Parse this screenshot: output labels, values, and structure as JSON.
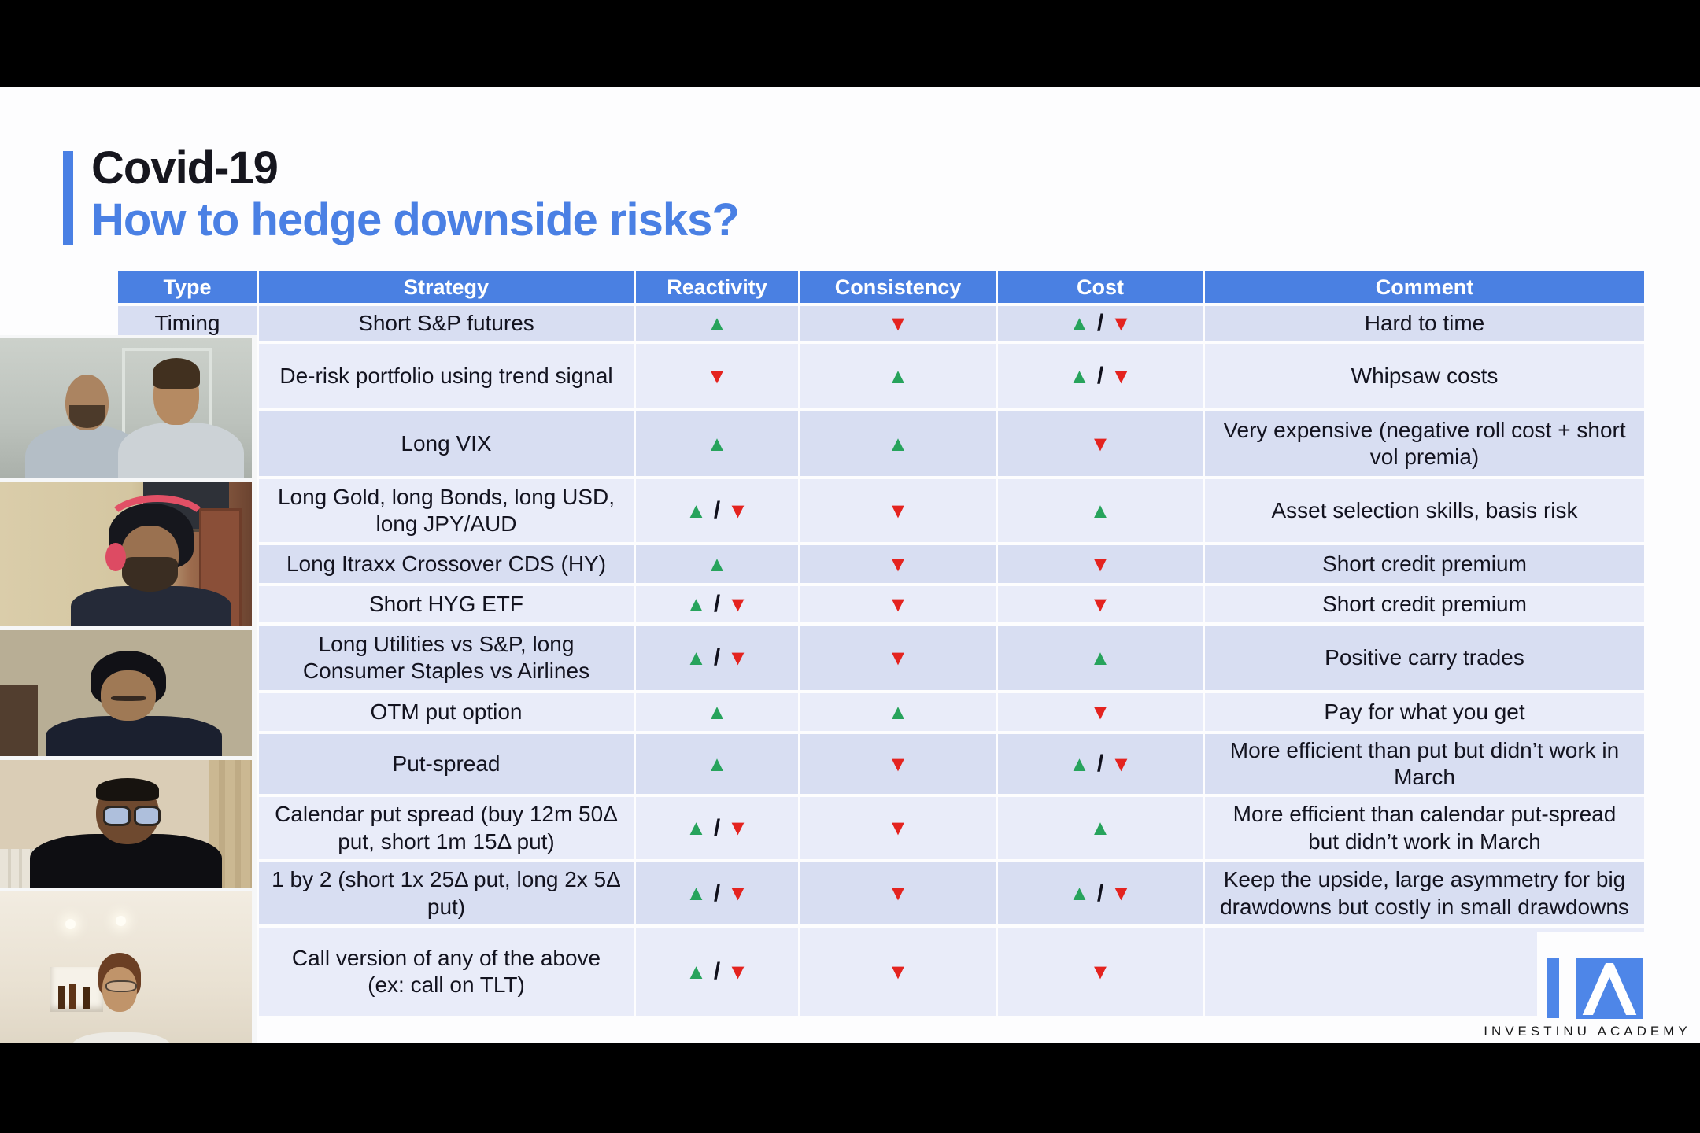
{
  "slide": {
    "title_line1": "Covid-19",
    "title_line2": "How to hedge downside risks?"
  },
  "table": {
    "headers": [
      "Type",
      "Strategy",
      "Reactivity",
      "Consistency",
      "Cost",
      "Comment"
    ],
    "rows": [
      {
        "type": "Timing",
        "strategy": "Short S&P futures",
        "reactivity": "up",
        "consistency": "down",
        "cost": "up/down",
        "comment": "Hard to time"
      },
      {
        "type": "",
        "strategy": "De-risk portfolio using trend signal",
        "reactivity": "down",
        "consistency": "up",
        "cost": "up/down",
        "comment": "Whipsaw costs"
      },
      {
        "type": "",
        "strategy": "Long VIX",
        "reactivity": "up",
        "consistency": "up",
        "cost": "down",
        "comment": "Very expensive (negative roll cost + short vol premia)"
      },
      {
        "type": "",
        "strategy": "Long Gold, long Bonds, long USD, long JPY/AUD",
        "reactivity": "up/down",
        "consistency": "down",
        "cost": "up",
        "comment": "Asset selection skills, basis risk"
      },
      {
        "type": "",
        "strategy": "Long Itraxx Crossover CDS (HY)",
        "reactivity": "up",
        "consistency": "down",
        "cost": "down",
        "comment": "Short credit premium"
      },
      {
        "type": "",
        "strategy": "Short HYG ETF",
        "reactivity": "up/down",
        "consistency": "down",
        "cost": "down",
        "comment": "Short credit premium"
      },
      {
        "type": "",
        "strategy": "Long Utilities vs S&P, long Consumer Staples vs Airlines",
        "reactivity": "up/down",
        "consistency": "down",
        "cost": "up",
        "comment": "Positive carry trades"
      },
      {
        "type": "",
        "strategy": "OTM put option",
        "reactivity": "up",
        "consistency": "up",
        "cost": "down",
        "comment": "Pay for what you get"
      },
      {
        "type": "",
        "strategy": "Put-spread",
        "reactivity": "up",
        "consistency": "down",
        "cost": "up/down",
        "comment": "More efficient than put but didn’t work in March"
      },
      {
        "type": "",
        "strategy": "Calendar put spread (buy 12m 50Δ put, short 1m 15Δ put)",
        "reactivity": "up/down",
        "consistency": "down",
        "cost": "up",
        "comment": "More efficient than calendar put-spread but didn’t work in March"
      },
      {
        "type": "",
        "strategy": "1 by 2 (short 1x 25Δ put, long 2x 5Δ put)",
        "reactivity": "up/down",
        "consistency": "down",
        "cost": "up/down",
        "comment": "Keep the upside, large asymmetry for big drawdowns but costly in small drawdowns"
      },
      {
        "type": "",
        "strategy": "Call version of any of the above (ex: call on TLT)",
        "reactivity": "up/down",
        "consistency": "down",
        "cost": "down",
        "comment": ""
      }
    ]
  },
  "colors": {
    "accent_blue": "#4a80e4",
    "header_bg": "#4a80e2",
    "row_medium": "#d8def2",
    "row_light": "#e9ecf9",
    "arrow_up_green": "#27a35c",
    "arrow_down_red": "#e4231f"
  },
  "icons": {
    "up_arrow": "▲",
    "down_arrow": "▼"
  },
  "participants": [
    {
      "name": "two-men-light-shirts"
    },
    {
      "name": "man-red-headphones"
    },
    {
      "name": "man-looking-down"
    },
    {
      "name": "person-black-hoodie-glasses"
    },
    {
      "name": "man-white-shirt-bright-room"
    }
  ],
  "logo": {
    "brand": "INVESTINU ACADEMY"
  }
}
